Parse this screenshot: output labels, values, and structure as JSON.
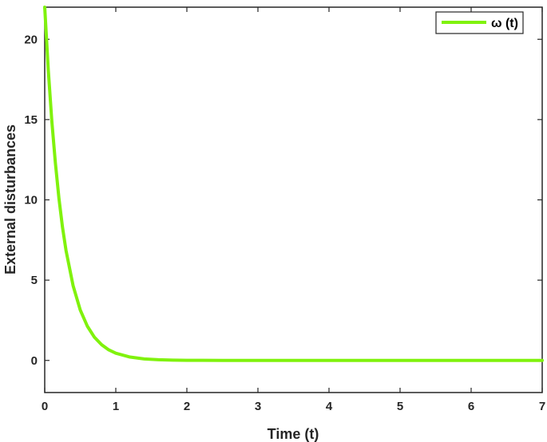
{
  "chart_data": {
    "type": "line",
    "xlabel": "Time (t)",
    "ylabel": "External disturbances",
    "xlim": [
      0,
      7
    ],
    "ylim": [
      -2,
      22
    ],
    "xticks": [
      0,
      1,
      2,
      3,
      4,
      5,
      6,
      7
    ],
    "yticks": [
      0,
      5,
      10,
      15,
      20
    ],
    "grid": false,
    "legend_position": "top-right",
    "series": [
      {
        "name": "ω (t)",
        "color": "#80F20D",
        "x": [
          0,
          0.05,
          0.1,
          0.15,
          0.2,
          0.25,
          0.3,
          0.4,
          0.5,
          0.6,
          0.7,
          0.8,
          0.9,
          1.0,
          1.2,
          1.4,
          1.6,
          1.8,
          2.0,
          2.5,
          3.0,
          3.5,
          4.0,
          5.0,
          6.0,
          7.0
        ],
        "y": [
          22.0,
          18.1,
          14.9,
          12.3,
          10.1,
          8.3,
          6.84,
          4.64,
          3.14,
          2.13,
          1.44,
          0.98,
          0.66,
          0.45,
          0.21,
          0.095,
          0.044,
          0.02,
          0.009,
          0.001,
          0.0,
          0.0,
          0.0,
          0.0,
          0.0,
          0.0
        ]
      }
    ]
  }
}
